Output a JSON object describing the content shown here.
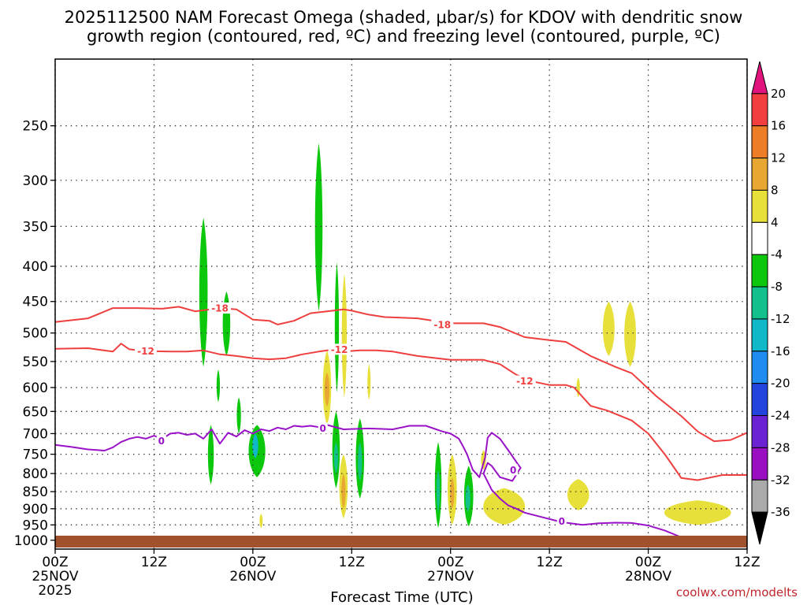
{
  "chart_data": {
    "type": "heatmap",
    "title_lines": [
      "2025112500 NAM Forecast Omega (shaded, μbar/s) for KDOV with dendritic snow",
      "growth region (contoured, red, ºC) and freezing level (contoured, purple, ºC)"
    ],
    "xlabel": "Forecast Time (UTC)",
    "ylabel": "",
    "credit": "coolwx.com/modelts",
    "x_ticks": [
      {
        "hour": 0,
        "label": "00Z",
        "sub": [
          "25NOV",
          "2025"
        ]
      },
      {
        "hour": 12,
        "label": "12Z",
        "sub": []
      },
      {
        "hour": 24,
        "label": "00Z",
        "sub": [
          "26NOV"
        ]
      },
      {
        "hour": 36,
        "label": "12Z",
        "sub": []
      },
      {
        "hour": 48,
        "label": "00Z",
        "sub": [
          "27NOV"
        ]
      },
      {
        "hour": 60,
        "label": "12Z",
        "sub": []
      },
      {
        "hour": 72,
        "label": "00Z",
        "sub": [
          "28NOV"
        ]
      },
      {
        "hour": 84,
        "label": "12Z",
        "sub": []
      }
    ],
    "x_range_hours": [
      0,
      84
    ],
    "y_ticks_hpa": [
      250,
      300,
      350,
      400,
      450,
      500,
      550,
      600,
      650,
      700,
      750,
      800,
      850,
      900,
      950,
      1000
    ],
    "y_range_hpa": [
      200,
      1030
    ],
    "y_scale": "log",
    "grid": "dotted",
    "colorbar": {
      "ticks": [
        20,
        16,
        12,
        8,
        4,
        -4,
        -8,
        -12,
        -16,
        -20,
        -24,
        -28,
        -32,
        -36
      ],
      "bins": [
        {
          "lo": 20,
          "hi": 24,
          "color": "#e0147c",
          "arrow": true
        },
        {
          "lo": 16,
          "hi": 20,
          "color": "#f23e3e"
        },
        {
          "lo": 12,
          "hi": 16,
          "color": "#ee7d28"
        },
        {
          "lo": 8,
          "hi": 12,
          "color": "#e8a632"
        },
        {
          "lo": 4,
          "hi": 8,
          "color": "#e8e03a"
        },
        {
          "lo": -4,
          "hi": 4,
          "color": "#ffffff"
        },
        {
          "lo": -8,
          "hi": -4,
          "color": "#0cc80c"
        },
        {
          "lo": -12,
          "hi": -8,
          "color": "#12c08c"
        },
        {
          "lo": -16,
          "hi": -12,
          "color": "#10b8c8"
        },
        {
          "lo": -20,
          "hi": -16,
          "color": "#1e8cf0"
        },
        {
          "lo": -24,
          "hi": -20,
          "color": "#2244dd"
        },
        {
          "lo": -28,
          "hi": -24,
          "color": "#6a22d2"
        },
        {
          "lo": -32,
          "hi": -28,
          "color": "#9a0fc2"
        },
        {
          "lo": -36,
          "hi": -32,
          "color": "#aaaaaa"
        },
        {
          "lo": -40,
          "hi": -36,
          "color": "#000000",
          "arrow": true
        }
      ]
    },
    "terrain_color": "#a0522d",
    "omega_features": [
      {
        "hour": 18.0,
        "p_top": 340,
        "p_bot": 560,
        "hw": 0.5,
        "value": -6
      },
      {
        "hour": 20.8,
        "p_top": 435,
        "p_bot": 540,
        "hw": 0.45,
        "value": -6
      },
      {
        "hour": 19.8,
        "p_top": 565,
        "p_bot": 630,
        "hw": 0.2,
        "value": -5
      },
      {
        "hour": 18.9,
        "p_top": 680,
        "p_bot": 830,
        "hw": 0.35,
        "value": -6
      },
      {
        "hour": 22.3,
        "p_top": 620,
        "p_bot": 700,
        "hw": 0.25,
        "value": -6
      },
      {
        "hour": 24.5,
        "p_top": 680,
        "p_bot": 810,
        "hw": 1.0,
        "value": -6
      },
      {
        "hour": 24.3,
        "p_top": 700,
        "p_bot": 760,
        "hw": 0.35,
        "value": -14
      },
      {
        "hour": 32.0,
        "p_top": 265,
        "p_bot": 465,
        "hw": 0.45,
        "value": -6
      },
      {
        "hour": 34.2,
        "p_top": 395,
        "p_bot": 610,
        "hw": 0.25,
        "value": -6
      },
      {
        "hour": 34.1,
        "p_top": 650,
        "p_bot": 840,
        "hw": 0.45,
        "value": -6
      },
      {
        "hour": 34.1,
        "p_top": 720,
        "p_bot": 800,
        "hw": 0.25,
        "value": -11
      },
      {
        "hour": 37.0,
        "p_top": 665,
        "p_bot": 870,
        "hw": 0.5,
        "value": -6
      },
      {
        "hour": 37.0,
        "p_top": 720,
        "p_bot": 820,
        "hw": 0.25,
        "value": -11
      },
      {
        "hour": 46.5,
        "p_top": 720,
        "p_bot": 960,
        "hw": 0.4,
        "value": -6
      },
      {
        "hour": 46.5,
        "p_top": 790,
        "p_bot": 910,
        "hw": 0.2,
        "value": -11
      },
      {
        "hour": 50.2,
        "p_top": 780,
        "p_bot": 955,
        "hw": 0.55,
        "value": -6
      },
      {
        "hour": 50.1,
        "p_top": 830,
        "p_bot": 910,
        "hw": 0.3,
        "value": -11
      },
      {
        "hour": 35.1,
        "p_top": 410,
        "p_bot": 620,
        "hw": 0.3,
        "value": 5
      },
      {
        "hour": 33.0,
        "p_top": 530,
        "p_bot": 680,
        "hw": 0.5,
        "value": 6
      },
      {
        "hour": 33.0,
        "p_top": 570,
        "p_bot": 640,
        "hw": 0.3,
        "value": 10
      },
      {
        "hour": 35.0,
        "p_top": 750,
        "p_bot": 930,
        "hw": 0.5,
        "value": 6
      },
      {
        "hour": 35.0,
        "p_top": 800,
        "p_bot": 900,
        "hw": 0.25,
        "value": 10
      },
      {
        "hour": 38.1,
        "p_top": 555,
        "p_bot": 625,
        "hw": 0.15,
        "value": 5
      },
      {
        "hour": 25.0,
        "p_top": 915,
        "p_bot": 960,
        "hw": 0.18,
        "value": 5
      },
      {
        "hour": 48.2,
        "p_top": 750,
        "p_bot": 950,
        "hw": 0.55,
        "value": 6
      },
      {
        "hour": 48.2,
        "p_top": 810,
        "p_bot": 900,
        "hw": 0.25,
        "value": 9
      },
      {
        "hour": 54.5,
        "p_top": 840,
        "p_bot": 950,
        "hw": 2.5,
        "value": 6
      },
      {
        "hour": 52.0,
        "p_top": 740,
        "p_bot": 790,
        "hw": 0.3,
        "value": 5
      },
      {
        "hour": 67.2,
        "p_top": 450,
        "p_bot": 540,
        "hw": 0.7,
        "value": 6
      },
      {
        "hour": 69.8,
        "p_top": 450,
        "p_bot": 560,
        "hw": 0.7,
        "value": 6
      },
      {
        "hour": 63.5,
        "p_top": 580,
        "p_bot": 620,
        "hw": 0.2,
        "value": 5
      },
      {
        "hour": 63.5,
        "p_top": 815,
        "p_bot": 905,
        "hw": 1.3,
        "value": 6
      },
      {
        "hour": 78.0,
        "p_top": 875,
        "p_bot": 950,
        "hw": 4.0,
        "value": 6
      }
    ],
    "dgz_contours": [
      {
        "level": -18,
        "label": "-18",
        "label_points": [
          {
            "hour": 20.0,
            "p": 460
          },
          {
            "hour": 47.0,
            "p": 486
          }
        ],
        "points": [
          [
            0,
            482
          ],
          [
            4,
            476
          ],
          [
            7,
            460
          ],
          [
            10,
            460
          ],
          [
            13,
            461
          ],
          [
            15,
            458
          ],
          [
            17,
            465
          ],
          [
            20,
            460
          ],
          [
            22,
            462
          ],
          [
            24,
            478
          ],
          [
            26,
            480
          ],
          [
            27,
            486
          ],
          [
            29,
            480
          ],
          [
            31,
            468
          ],
          [
            33,
            465
          ],
          [
            35,
            462
          ],
          [
            36,
            464
          ],
          [
            38,
            470
          ],
          [
            40,
            474
          ],
          [
            44,
            476
          ],
          [
            48,
            484
          ],
          [
            52,
            484
          ],
          [
            54,
            490
          ],
          [
            57,
            507
          ],
          [
            60,
            512
          ],
          [
            62,
            515
          ],
          [
            65,
            540
          ],
          [
            68,
            560
          ],
          [
            70,
            572
          ],
          [
            73,
            618
          ],
          [
            76,
            660
          ],
          [
            78,
            695
          ],
          [
            80,
            718
          ],
          [
            82,
            715
          ],
          [
            84,
            698
          ]
        ]
      },
      {
        "level": -12,
        "label": "-12",
        "label_points": [
          {
            "hour": 11.0,
            "p": 531
          },
          {
            "hour": 34.5,
            "p": 528
          },
          {
            "hour": 57.0,
            "p": 587
          }
        ],
        "points": [
          [
            0,
            527
          ],
          [
            4,
            526
          ],
          [
            7,
            532
          ],
          [
            8,
            518
          ],
          [
            9,
            528
          ],
          [
            11,
            531
          ],
          [
            14,
            532
          ],
          [
            16,
            532
          ],
          [
            18,
            530
          ],
          [
            20,
            537
          ],
          [
            22,
            540
          ],
          [
            24,
            544
          ],
          [
            26,
            546
          ],
          [
            28,
            544
          ],
          [
            30,
            537
          ],
          [
            32,
            532
          ],
          [
            34,
            528
          ],
          [
            35,
            532
          ],
          [
            37,
            530
          ],
          [
            39,
            530
          ],
          [
            41,
            532
          ],
          [
            44,
            540
          ],
          [
            48,
            547
          ],
          [
            52,
            547
          ],
          [
            54,
            555
          ],
          [
            56,
            575
          ],
          [
            58,
            588
          ],
          [
            60,
            595
          ],
          [
            62,
            595
          ],
          [
            63,
            600
          ],
          [
            65,
            638
          ],
          [
            67,
            648
          ],
          [
            70,
            670
          ],
          [
            72,
            700
          ],
          [
            74,
            750
          ],
          [
            75,
            780
          ],
          [
            76,
            812
          ],
          [
            78,
            818
          ],
          [
            81,
            804
          ],
          [
            84,
            804
          ]
        ]
      }
    ],
    "freezing_contour": {
      "level": 0,
      "label": "0",
      "label_points": [
        {
          "hour": 12.9,
          "p": 717
        },
        {
          "hour": 32.5,
          "p": 687
        },
        {
          "hour": 55.6,
          "p": 790
        },
        {
          "hour": 61.5,
          "p": 938
        }
      ],
      "points": [
        [
          0,
          727
        ],
        [
          2,
          732
        ],
        [
          4,
          738
        ],
        [
          6,
          741
        ],
        [
          7,
          733
        ],
        [
          8,
          720
        ],
        [
          9,
          712
        ],
        [
          10,
          708
        ],
        [
          11,
          712
        ],
        [
          12,
          705
        ],
        [
          13,
          712
        ],
        [
          14,
          700
        ],
        [
          15,
          698
        ],
        [
          16,
          703
        ],
        [
          17,
          700
        ],
        [
          18,
          712
        ],
        [
          19,
          690
        ],
        [
          20,
          724
        ],
        [
          21,
          698
        ],
        [
          22,
          707
        ],
        [
          23,
          692
        ],
        [
          24,
          700
        ],
        [
          25,
          690
        ],
        [
          26,
          694
        ],
        [
          27,
          686
        ],
        [
          28,
          690
        ],
        [
          29,
          682
        ],
        [
          30,
          684
        ],
        [
          31,
          682
        ],
        [
          32,
          685
        ],
        [
          33,
          680
        ],
        [
          35,
          690
        ],
        [
          38,
          688
        ],
        [
          41,
          690
        ],
        [
          43,
          682
        ],
        [
          45,
          682
        ],
        [
          47,
          695
        ],
        [
          48,
          700
        ],
        [
          49,
          712
        ],
        [
          49.5,
          730
        ],
        [
          50,
          750
        ],
        [
          50.7,
          790
        ],
        [
          51.5,
          810
        ],
        [
          52.2,
          758
        ],
        [
          52.5,
          710
        ],
        [
          53,
          698
        ],
        [
          54,
          712
        ],
        [
          55,
          740
        ],
        [
          56,
          770
        ],
        [
          56.5,
          785
        ],
        [
          55.5,
          820
        ],
        [
          54,
          810
        ],
        [
          53,
          780
        ],
        [
          52.5,
          772
        ],
        [
          52,
          800
        ],
        [
          53,
          845
        ],
        [
          54,
          870
        ],
        [
          55,
          890
        ],
        [
          56,
          900
        ],
        [
          57,
          912
        ],
        [
          59,
          925
        ],
        [
          61,
          938
        ],
        [
          62,
          943
        ],
        [
          64,
          950
        ],
        [
          66,
          945
        ],
        [
          68,
          943
        ],
        [
          70,
          944
        ],
        [
          72,
          952
        ],
        [
          74,
          968
        ],
        [
          76,
          990
        ]
      ]
    }
  }
}
